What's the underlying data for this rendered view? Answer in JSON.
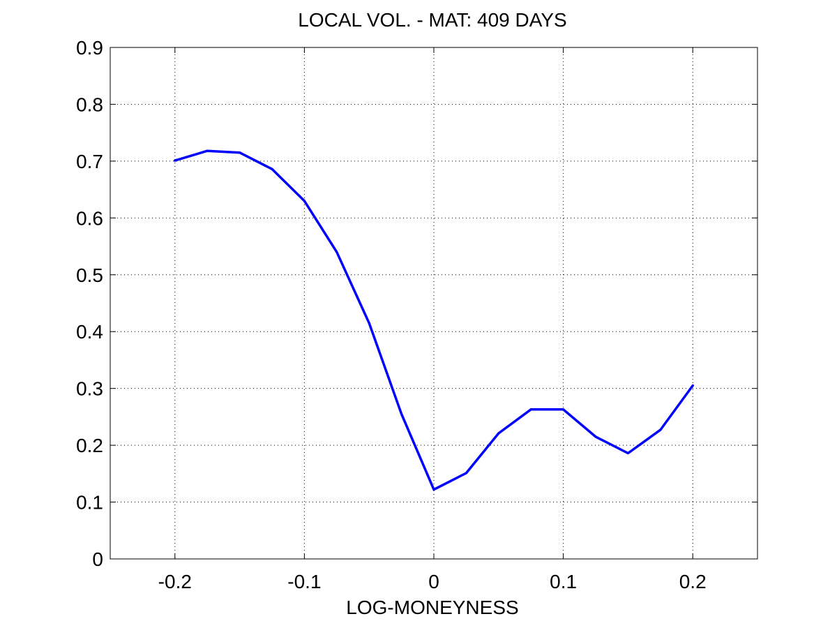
{
  "chart_data": {
    "type": "line",
    "title": "LOCAL VOL. - MAT: 409 DAYS",
    "xlabel": "LOG-MONEYNESS",
    "ylabel": "",
    "xlim": [
      -0.25,
      0.25
    ],
    "ylim": [
      0,
      0.9
    ],
    "xticks": [
      -0.2,
      -0.1,
      0,
      0.1,
      0.2
    ],
    "xtick_labels": [
      "-0.2",
      "-0.1",
      "0",
      "0.1",
      "0.2"
    ],
    "yticks": [
      0,
      0.1,
      0.2,
      0.3,
      0.4,
      0.5,
      0.6,
      0.7,
      0.8,
      0.9
    ],
    "ytick_labels": [
      "0",
      "0.1",
      "0.2",
      "0.3",
      "0.4",
      "0.5",
      "0.6",
      "0.7",
      "0.8",
      "0.9"
    ],
    "grid": true,
    "grid_style": "dotted",
    "series": [
      {
        "color": "#0000ff",
        "x": [
          -0.2,
          -0.175,
          -0.15,
          -0.125,
          -0.1,
          -0.075,
          -0.05,
          -0.025,
          0,
          0.025,
          0.05,
          0.075,
          0.1,
          0.125,
          0.15,
          0.175,
          0.2
        ],
        "y": [
          0.701,
          0.718,
          0.715,
          0.686,
          0.63,
          0.54,
          0.415,
          0.255,
          0.122,
          0.151,
          0.221,
          0.263,
          0.263,
          0.215,
          0.186,
          0.227,
          0.305
        ]
      }
    ]
  }
}
